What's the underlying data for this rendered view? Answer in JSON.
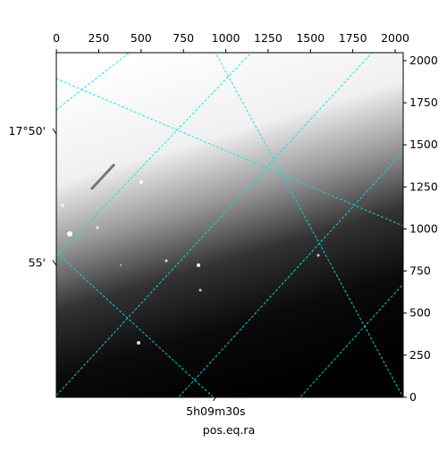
{
  "chart_data": {
    "type": "image",
    "xlabel": "pos.eq.ra",
    "xlim": [
      -0.5,
      2047.5
    ],
    "ylim": [
      -0.5,
      2047.5
    ],
    "xticks": [
      0,
      250,
      500,
      750,
      1000,
      1250,
      1500,
      1750,
      2000
    ],
    "yticks": [
      0,
      250,
      500,
      750,
      1000,
      1250,
      1500,
      1750,
      2000
    ],
    "world_yticks": [
      {
        "value": 1580,
        "label": "17°50'"
      },
      {
        "value": 798,
        "label": "55'"
      }
    ],
    "world_xticks": [
      {
        "value": 941,
        "label": "5h09m30s"
      }
    ],
    "grid_color": "#00e5e5"
  }
}
